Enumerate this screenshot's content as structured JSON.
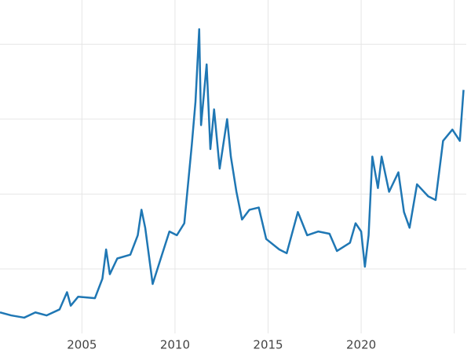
{
  "chart_data": {
    "type": "line",
    "x": [
      2000.6,
      2001.2,
      2001.9,
      2002.5,
      2003.1,
      2003.8,
      2004.2,
      2004.4,
      2004.8,
      2005.7,
      2006.1,
      2006.3,
      2006.5,
      2006.9,
      2007.6,
      2008.0,
      2008.2,
      2008.4,
      2008.8,
      2009.3,
      2009.7,
      2010.1,
      2010.5,
      2010.9,
      2011.1,
      2011.3,
      2011.4,
      2011.7,
      2011.9,
      2012.1,
      2012.4,
      2012.8,
      2013.0,
      2013.3,
      2013.6,
      2014.0,
      2014.5,
      2014.9,
      2015.6,
      2016.0,
      2016.6,
      2017.1,
      2017.7,
      2018.3,
      2018.7,
      2019.4,
      2019.7,
      2020.0,
      2020.2,
      2020.4,
      2020.6,
      2020.9,
      2021.1,
      2021.5,
      2022.0,
      2022.3,
      2022.6,
      2023.0,
      2023.6,
      2024.0,
      2024.4,
      2024.9,
      2025.3,
      2025.5
    ],
    "series": [
      {
        "color": "#1f77b4",
        "values": [
          4.2,
          3.8,
          3.5,
          4.2,
          3.8,
          4.6,
          6.9,
          5.1,
          6.3,
          6.1,
          8.7,
          12.6,
          9.3,
          11.4,
          11.9,
          14.5,
          17.9,
          15.5,
          8.0,
          11.9,
          15.0,
          14.5,
          16.1,
          26.5,
          32.3,
          42.0,
          29.2,
          37.3,
          26.0,
          31.3,
          23.4,
          30.0,
          25.0,
          20.3,
          16.6,
          17.9,
          18.2,
          14.0,
          12.6,
          12.1,
          17.6,
          14.5,
          15.0,
          14.7,
          12.4,
          13.5,
          16.1,
          15.0,
          10.3,
          14.5,
          25.0,
          20.8,
          25.0,
          20.3,
          22.9,
          17.6,
          15.5,
          21.3,
          19.7,
          19.2,
          27.1,
          28.6,
          27.1,
          33.9
        ]
      }
    ],
    "xlim": [
      2000.6,
      2025.9
    ],
    "ylim": [
      1.4,
      45.9
    ],
    "xticks": [
      2005,
      2010,
      2015,
      2020
    ],
    "xgrid": [
      2005,
      2010,
      2015,
      2020,
      2025
    ],
    "ygrid": [
      10,
      20,
      30,
      40
    ],
    "grid": true
  }
}
